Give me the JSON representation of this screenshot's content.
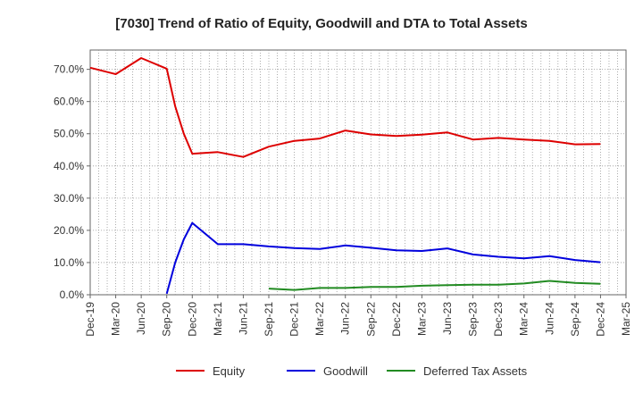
{
  "chart_data": {
    "type": "line",
    "title": "[7030]  Trend of Ratio of Equity, Goodwill and DTA to Total Assets",
    "xlabel": "",
    "ylabel": "",
    "ylim": [
      0,
      76
    ],
    "y_ticks": [
      0,
      10,
      20,
      30,
      40,
      50,
      60,
      70
    ],
    "y_tick_labels": [
      "0.0%",
      "10.0%",
      "20.0%",
      "30.0%",
      "40.0%",
      "50.0%",
      "60.0%",
      "70.0%"
    ],
    "x_tick_labels": [
      "Dec-19",
      "Mar-20",
      "Jun-20",
      "Sep-20",
      "Dec-20",
      "Mar-21",
      "Jun-21",
      "Sep-21",
      "Dec-21",
      "Mar-22",
      "Jun-22",
      "Sep-22",
      "Dec-22",
      "Mar-23",
      "Jun-23",
      "Sep-23",
      "Dec-23",
      "Mar-24",
      "Jun-24",
      "Sep-24",
      "Dec-24",
      "Mar-25"
    ],
    "x_range": [
      0,
      63
    ],
    "grid": true,
    "legend_position": "bottom",
    "series": [
      {
        "name": "Equity",
        "color": "#dd0000",
        "x": [
          0,
          3,
          6,
          9,
          10,
          11,
          12,
          15,
          18,
          21,
          24,
          27,
          30,
          33,
          36,
          39,
          42,
          45,
          48,
          51,
          54,
          57,
          60
        ],
        "values": [
          70.5,
          68.5,
          73.5,
          70.2,
          58.5,
          50.0,
          43.8,
          44.3,
          42.8,
          46.0,
          47.8,
          48.5,
          51.0,
          49.8,
          49.3,
          49.7,
          50.4,
          48.2,
          48.7,
          48.2,
          47.8,
          46.7,
          46.8
        ]
      },
      {
        "name": "Goodwill",
        "color": "#0000dd",
        "x": [
          9,
          10,
          11,
          12,
          15,
          18,
          21,
          24,
          27,
          30,
          33,
          36,
          39,
          42,
          45,
          48,
          51,
          54,
          57,
          60
        ],
        "values": [
          0.3,
          10.0,
          17.2,
          22.3,
          15.7,
          15.7,
          15.0,
          14.5,
          14.2,
          15.3,
          14.6,
          13.8,
          13.6,
          14.4,
          12.5,
          11.8,
          11.3,
          12.0,
          10.8,
          10.1
        ]
      },
      {
        "name": "Deferred Tax Assets",
        "color": "#228b22",
        "x": [
          21,
          24,
          27,
          30,
          33,
          36,
          39,
          42,
          45,
          48,
          51,
          54,
          57,
          60
        ],
        "values": [
          1.9,
          1.5,
          2.1,
          2.1,
          2.4,
          2.4,
          2.8,
          3.0,
          3.1,
          3.1,
          3.5,
          4.3,
          3.7,
          3.4
        ]
      }
    ]
  }
}
